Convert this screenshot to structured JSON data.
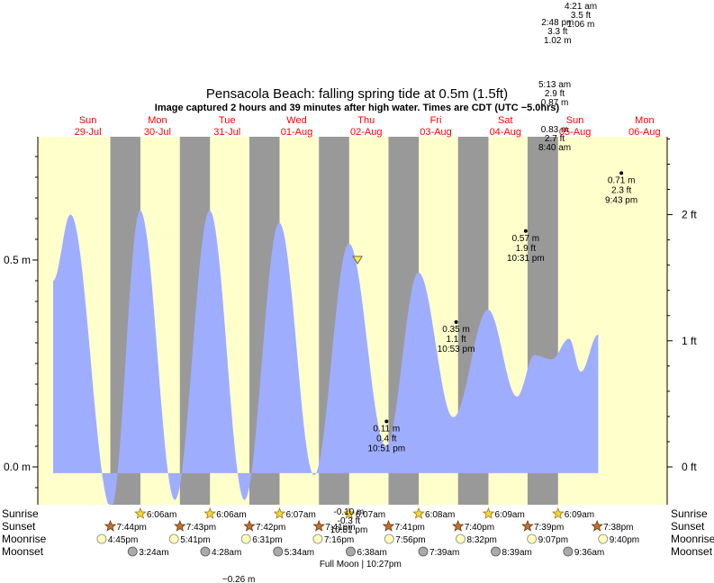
{
  "chart_data": {
    "type": "area",
    "title": "Pensacola Beach: falling  spring tide at 0.5m (1.5ft)",
    "subtitle": "Image captured 2 hours and 39 minutes after high water. Times are CDT (UTC −5.0hrs)",
    "colors": {
      "fill": "#9fadff",
      "day": "#ffffcc",
      "night": "#999999"
    },
    "days": [
      {
        "name": "Sun",
        "date": "29-Jul",
        "hour": 12
      },
      {
        "name": "Mon",
        "date": "30-Jul",
        "hour": 36
      },
      {
        "name": "Tue",
        "date": "31-Jul",
        "hour": 60
      },
      {
        "name": "Wed",
        "date": "01-Aug",
        "hour": 84
      },
      {
        "name": "Thu",
        "date": "02-Aug",
        "hour": 108
      },
      {
        "name": "Fri",
        "date": "03-Aug",
        "hour": 132
      },
      {
        "name": "Sat",
        "date": "04-Aug",
        "hour": 156
      },
      {
        "name": "Sun",
        "date": "05-Aug",
        "hour": 180
      },
      {
        "name": "Mon",
        "date": "06-Aug",
        "hour": 204
      }
    ],
    "y_axis_left": [
      {
        "label": "0.5 m",
        "value": 0.5
      },
      {
        "label": "0.0 m",
        "value": 0.0
      }
    ],
    "y_axis_right": [
      {
        "label": "2 ft",
        "value": 0.6096
      },
      {
        "label": "1 ft",
        "value": 0.3048
      },
      {
        "label": "0 ft",
        "value": 0.0
      }
    ],
    "tide_curve": [
      {
        "hour": 0,
        "value": 0.45
      },
      {
        "hour": 6,
        "value": 0.61
      },
      {
        "hour": 20,
        "value": -0.1
      },
      {
        "hour": 30,
        "value": 0.62
      },
      {
        "hour": 42,
        "value": -0.08
      },
      {
        "hour": 54,
        "value": 0.62
      },
      {
        "hour": 66,
        "value": -0.08
      },
      {
        "hour": 78,
        "value": 0.59
      },
      {
        "hour": 90,
        "value": -0.02
      },
      {
        "hour": 102,
        "value": 0.54
      },
      {
        "hour": 114.8,
        "value": 0.05
      },
      {
        "hour": 126,
        "value": 0.47
      },
      {
        "hour": 138,
        "value": 0.12
      },
      {
        "hour": 150,
        "value": 0.38
      },
      {
        "hour": 160,
        "value": 0.17
      },
      {
        "hour": 166,
        "value": 0.27
      },
      {
        "hour": 172,
        "value": 0.26
      },
      {
        "hour": 178,
        "value": 0.31
      },
      {
        "hour": 182,
        "value": 0.23
      },
      {
        "hour": 188,
        "value": 0.32
      }
    ],
    "tide_labels": [
      {
        "hour": 115,
        "value": 0.11,
        "lines": [
          "0.11 m",
          "0.4 ft",
          "10:51 pm"
        ]
      },
      {
        "hour": 139,
        "value": 0.35,
        "lines": [
          "0.35 m",
          "1.1 ft",
          "10:53 pm"
        ]
      },
      {
        "hour": 163,
        "value": 0.57,
        "lines": [
          "0.57 m",
          "1.9 ft",
          "10:31 pm"
        ]
      },
      {
        "hour": 196,
        "value": 0.71,
        "lines": [
          "0.71 m",
          "2.3 ft",
          "9:43 pm"
        ]
      }
    ],
    "offscale_labels": [
      {
        "hour": 102,
        "lines": [
          "-0.10 m",
          "-0.3 ft",
          "10:51 pm"
        ],
        "position": "below-grid"
      },
      {
        "hour": 64,
        "lines": [
          "−0.26 m"
        ],
        "position": "bottom"
      },
      {
        "hour": 173,
        "lines": [
          "5:13 am",
          "2.9 ft",
          "0.87 m"
        ],
        "position": "above-days"
      },
      {
        "hour": 173,
        "lines": [
          "0.83 m",
          "2.7 ft",
          "8:40 am"
        ],
        "position": "top-of-grid"
      },
      {
        "hour": 174,
        "lines": [
          "2:48 pm",
          "3.3 ft",
          "1.02 m"
        ],
        "position": "top-2"
      },
      {
        "hour": 182,
        "lines": [
          "4:21 am",
          "3.5 ft",
          "1.06 m"
        ],
        "position": "top-1"
      }
    ],
    "current_marker": {
      "hour": 105,
      "value": 0.5
    },
    "sunrise": [
      {
        "hour": 30.1,
        "time": "6:06am"
      },
      {
        "hour": 54.1,
        "time": "6:06am"
      },
      {
        "hour": 78.1,
        "time": "6:07am"
      },
      {
        "hour": 102.1,
        "time": "6:07am"
      },
      {
        "hour": 126.1,
        "time": "6:08am"
      },
      {
        "hour": 150.15,
        "time": "6:09am"
      },
      {
        "hour": 174.15,
        "time": "6:09am"
      }
    ],
    "sunset": [
      {
        "hour": 19.73,
        "time": "7:44pm"
      },
      {
        "hour": 43.72,
        "time": "7:43pm"
      },
      {
        "hour": 67.7,
        "time": "7:42pm"
      },
      {
        "hour": 91.68,
        "time": "7:41pm"
      },
      {
        "hour": 115.68,
        "time": "7:41pm"
      },
      {
        "hour": 139.67,
        "time": "7:40pm"
      },
      {
        "hour": 163.65,
        "time": "7:39pm"
      },
      {
        "hour": 187.63,
        "time": "7:38pm"
      }
    ],
    "moonrise": [
      {
        "hour": 16.75,
        "time": "4:45pm"
      },
      {
        "hour": 41.68,
        "time": "5:41pm"
      },
      {
        "hour": 66.52,
        "time": "6:31pm"
      },
      {
        "hour": 91.27,
        "time": "7:16pm"
      },
      {
        "hour": 115.93,
        "time": "7:56pm"
      },
      {
        "hour": 140.53,
        "time": "8:32pm"
      },
      {
        "hour": 165.12,
        "time": "9:07pm"
      },
      {
        "hour": 189.67,
        "time": "9:40pm"
      }
    ],
    "moonset": [
      {
        "hour": 27.4,
        "time": "3:24am"
      },
      {
        "hour": 52.47,
        "time": "4:28am"
      },
      {
        "hour": 77.57,
        "time": "5:34am"
      },
      {
        "hour": 102.63,
        "time": "6:38am"
      },
      {
        "hour": 127.65,
        "time": "7:39am"
      },
      {
        "hour": 152.65,
        "time": "8:39am"
      },
      {
        "hour": 177.6,
        "time": "9:36am"
      }
    ],
    "row_labels": [
      "Sunrise",
      "Sunset",
      "Moonrise",
      "Moonset"
    ],
    "full_moon": {
      "hour": 106,
      "text": "Full Moon | 10:27pm"
    }
  }
}
